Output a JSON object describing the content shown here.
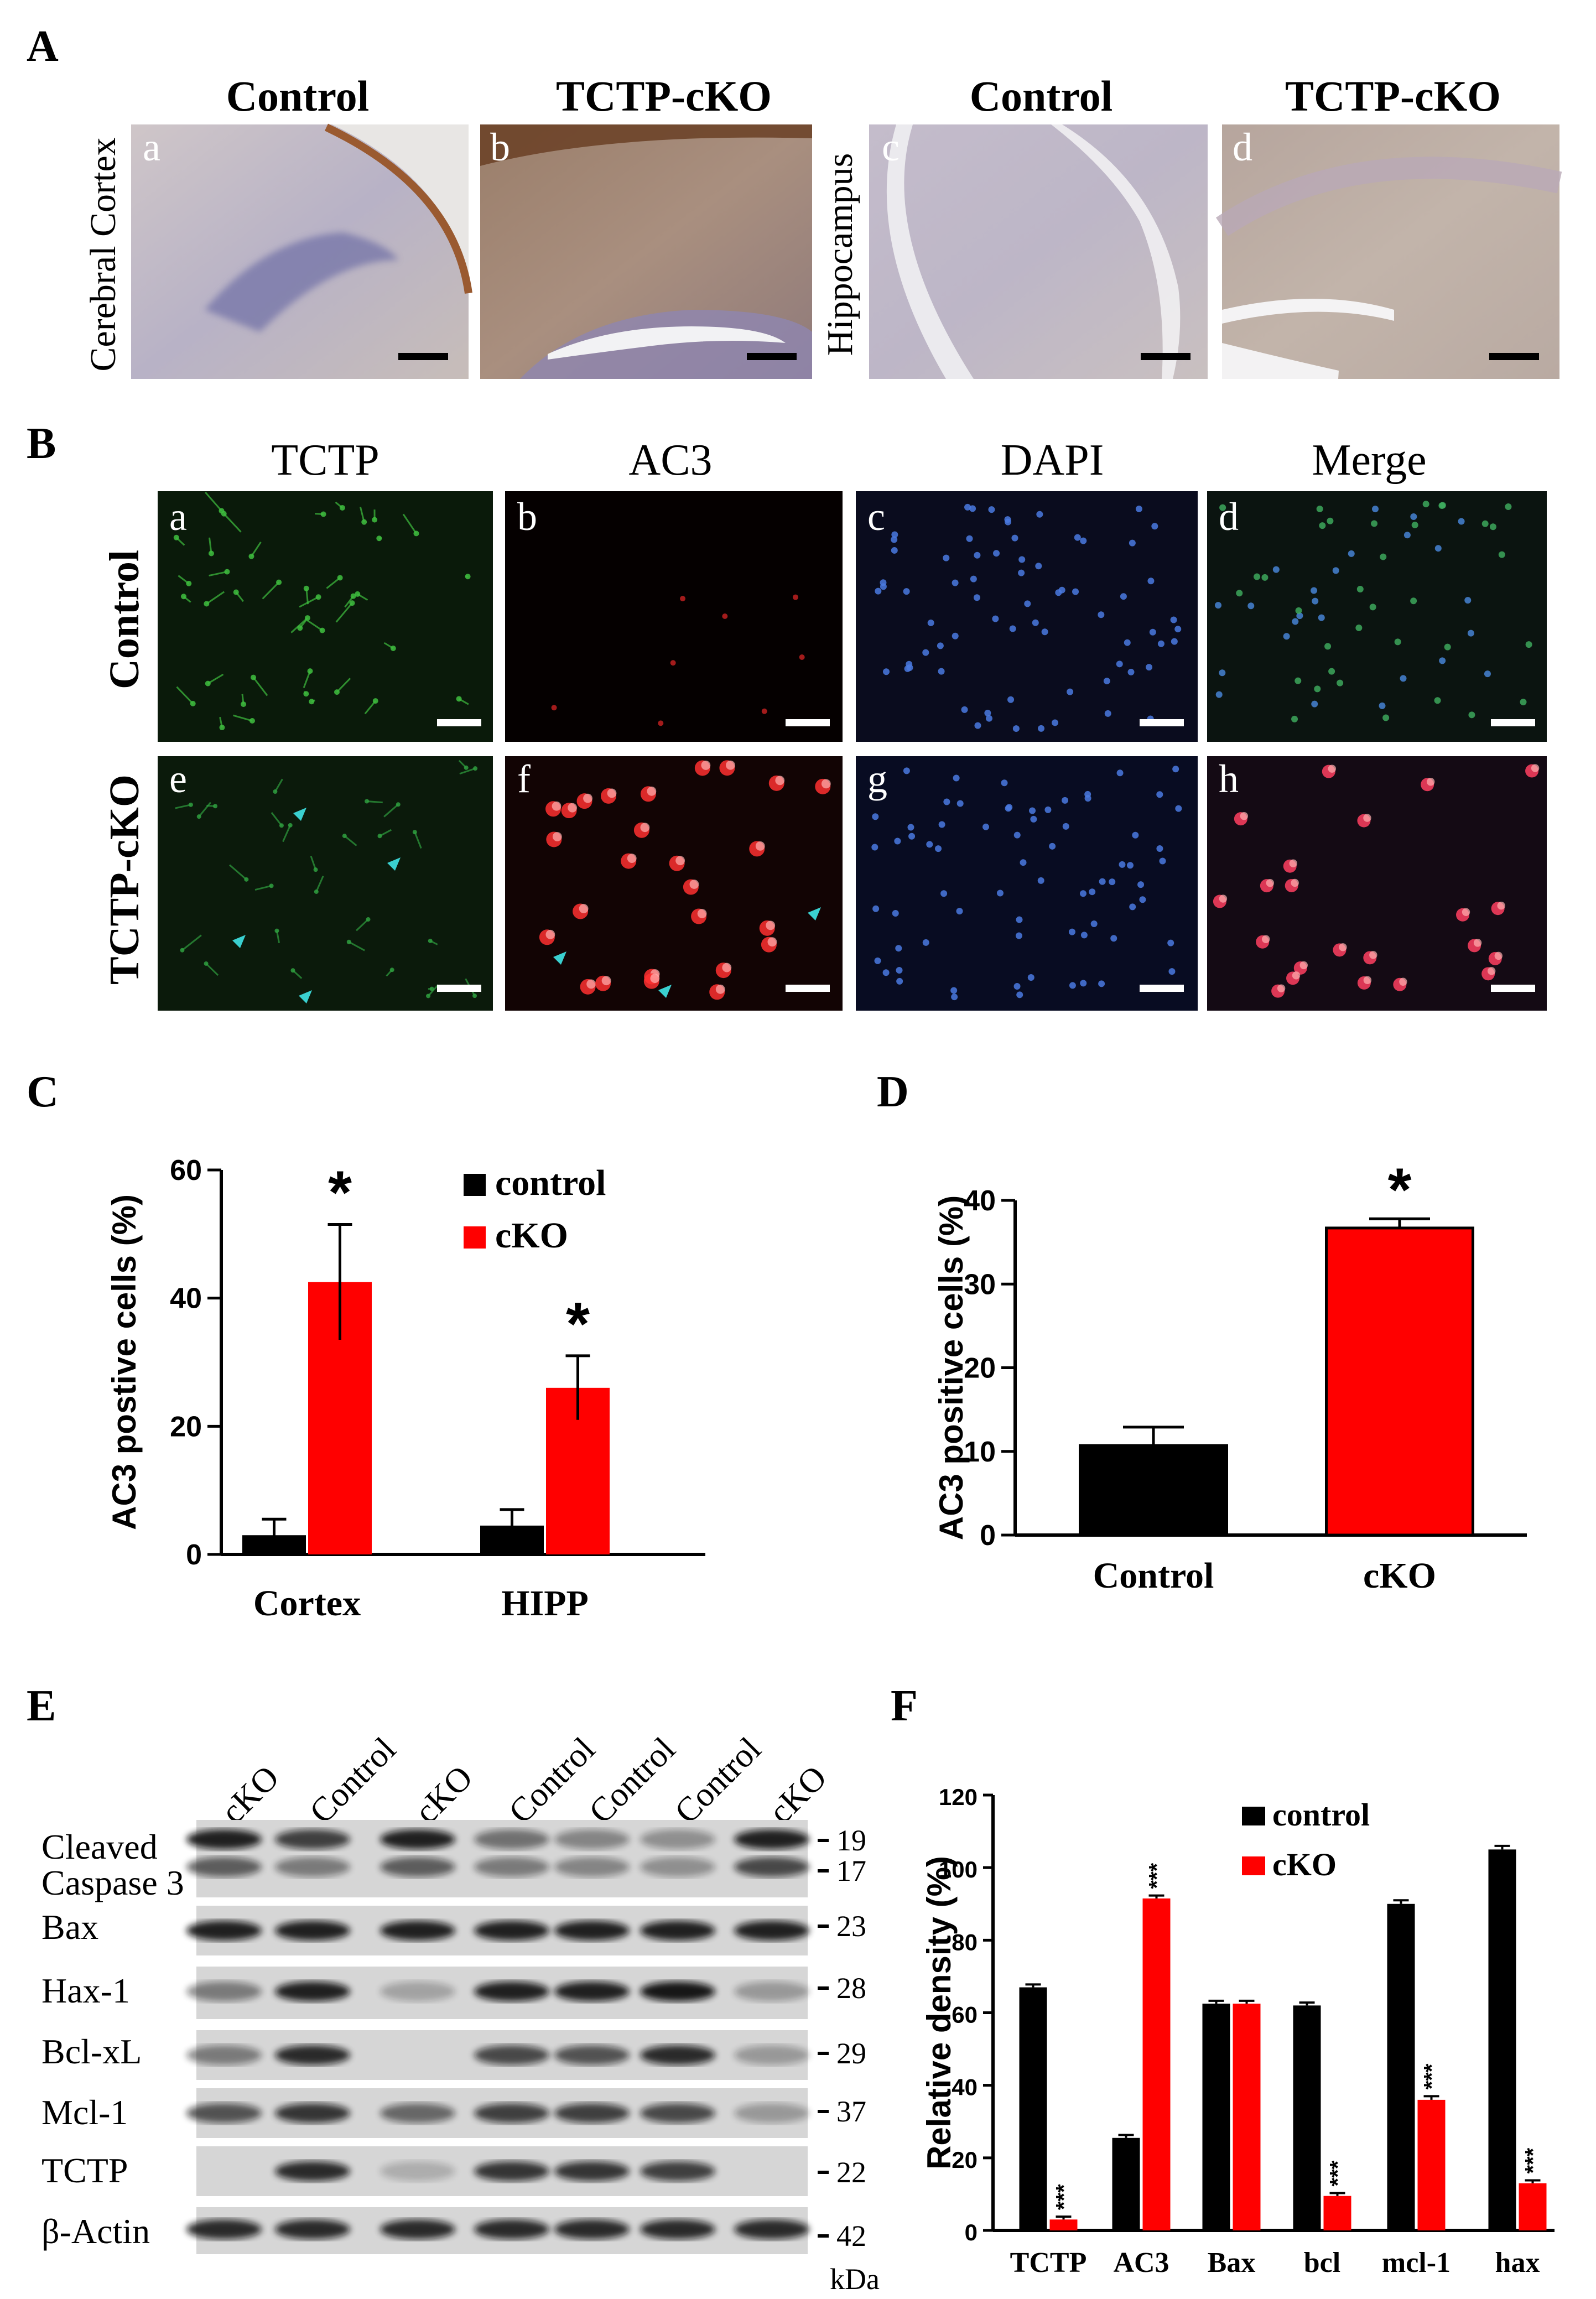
{
  "panels": {
    "A": {
      "label": "A",
      "titles": [
        "Control",
        "TCTP-cKO",
        "Control",
        "TCTP-cKO"
      ],
      "row_labels": [
        "Cerebral Cortex",
        "Hippocampus"
      ],
      "subs": [
        "a",
        "b",
        "c",
        "d"
      ]
    },
    "B": {
      "label": "B",
      "titles": [
        "TCTP",
        "AC3",
        "DAPI",
        "Merge"
      ],
      "row_labels": [
        "Control",
        "TCTP-cKO"
      ],
      "subs": [
        "a",
        "b",
        "c",
        "d",
        "e",
        "f",
        "g",
        "h"
      ]
    },
    "C": {
      "label": "C"
    },
    "D": {
      "label": "D"
    },
    "E": {
      "label": "E",
      "lanes": [
        "cKO",
        "Control",
        "cKO",
        "Control",
        "Control",
        "Control",
        "cKO"
      ],
      "rows": [
        "Cleaved",
        "Caspase 3",
        "Bax",
        "Hax-1",
        "Bcl-xL",
        "Mcl-1",
        "TCTP",
        "β-Actin"
      ],
      "sizes": [
        "19",
        "17",
        "23",
        "28",
        "29",
        "37",
        "22",
        "42"
      ],
      "unit": "kDa"
    },
    "F": {
      "label": "F"
    }
  },
  "chart_data": [
    {
      "id": "C",
      "type": "bar",
      "categories": [
        "Cortex",
        "HIPP"
      ],
      "series": [
        {
          "name": "control",
          "values": [
            3,
            4.5
          ],
          "errors": [
            2.5,
            2.5
          ],
          "color": "#000000"
        },
        {
          "name": "cKO",
          "values": [
            42.5,
            26
          ],
          "errors": [
            9,
            5
          ],
          "color": "#ff0000"
        }
      ],
      "annotations": [
        "*",
        "*"
      ],
      "xlabel": "",
      "ylabel": "AC3 postive cells (%)",
      "yticks": [
        "0",
        "20",
        "40",
        "60"
      ],
      "ylim": [
        0,
        60
      ],
      "legend": "top-right"
    },
    {
      "id": "D",
      "type": "bar",
      "categories": [
        "Control",
        "cKO"
      ],
      "values": [
        10.7,
        36.7
      ],
      "errors": [
        2.2,
        1.1
      ],
      "colors": [
        "#000000",
        "#ff0000"
      ],
      "annotations": [
        "",
        "*"
      ],
      "xlabel": "",
      "ylabel": "AC3 positive cells (%)",
      "yticks": [
        "0",
        "10",
        "20",
        "30",
        "40"
      ],
      "ylim": [
        0,
        40
      ]
    },
    {
      "id": "F",
      "type": "bar",
      "categories": [
        "TCTP",
        "AC3",
        "Bax",
        "bcl",
        "mcl-1",
        "hax"
      ],
      "series": [
        {
          "name": "control",
          "values": [
            67,
            25.5,
            62.5,
            62,
            90,
            105
          ],
          "errors": [
            0.8,
            0.8,
            0.8,
            0.8,
            1,
            1
          ],
          "color": "#000000"
        },
        {
          "name": "cKO",
          "values": [
            3,
            91.5,
            62.5,
            9.5,
            36,
            13
          ],
          "errors": [
            0.8,
            0.8,
            0.8,
            0.8,
            1,
            0.8
          ],
          "color": "#ff0000"
        }
      ],
      "annotations": [
        "***",
        "***",
        "",
        "***",
        "***",
        "***"
      ],
      "xlabel": "",
      "ylabel": "Relative density (%)",
      "yticks": [
        "0",
        "20",
        "40",
        "60",
        "80",
        "100",
        "120"
      ],
      "ylim": [
        0,
        120
      ],
      "legend": "top-right"
    }
  ]
}
